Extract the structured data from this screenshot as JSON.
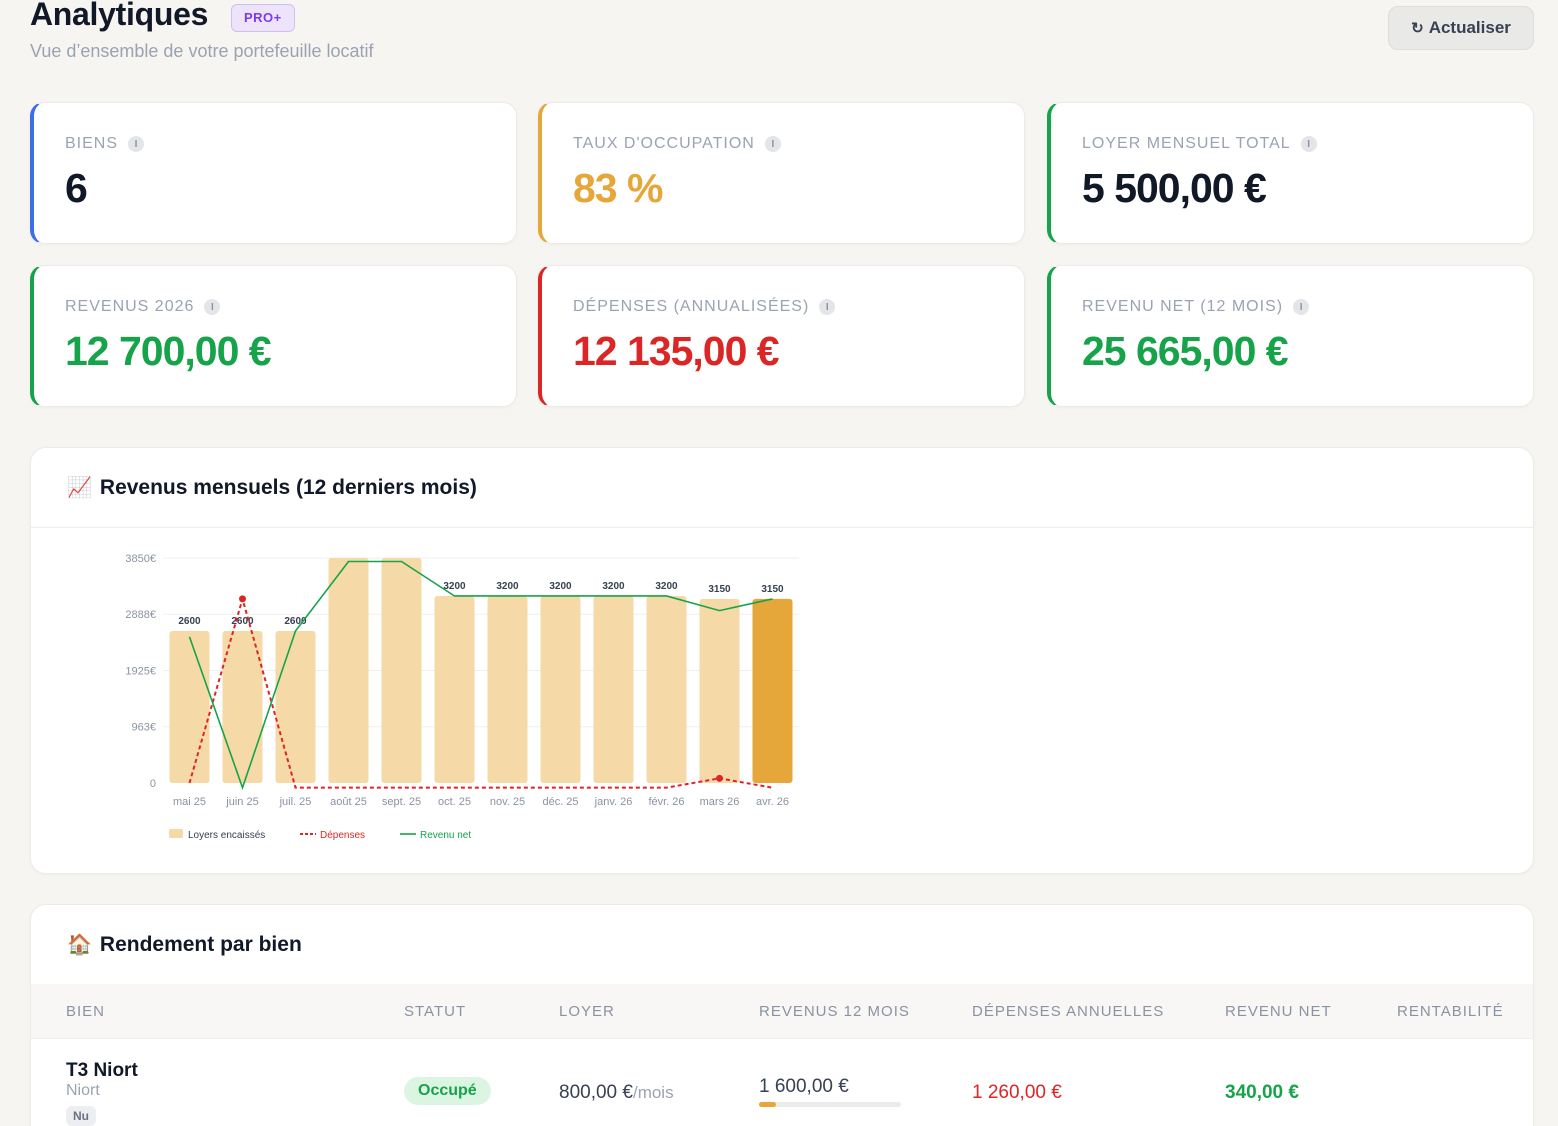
{
  "header": {
    "title": "Analytiques",
    "badge": "PRO+",
    "subtitle": "Vue d’ensemble de votre portefeuille locatif",
    "refresh_icon": "↻",
    "refresh_label": "Actualiser"
  },
  "colors": {
    "blue": "#3b6ee8",
    "orange": "#e6a73a",
    "green": "#16a34a",
    "red": "#dc2626",
    "dark": "#111827"
  },
  "kpis": [
    {
      "label": "Biens",
      "value": "6",
      "accent": "#3b6ee8",
      "value_color": "#111827"
    },
    {
      "label": "Taux d'occupation",
      "value": "83 %",
      "accent": "#e6a73a",
      "value_color": "#e6a73a"
    },
    {
      "label": "Loyer mensuel total",
      "value": "5 500,00 €",
      "accent": "#16a34a",
      "value_color": "#111827"
    },
    {
      "label": "Revenus 2026",
      "value": "12 700,00 €",
      "accent": "#16a34a",
      "value_color": "#16a34a"
    },
    {
      "label": "Dépenses (annualisées)",
      "value": "12 135,00 €",
      "accent": "#dc2626",
      "value_color": "#dc2626"
    },
    {
      "label": "Revenu net (12 mois)",
      "value": "25 665,00 €",
      "accent": "#16a34a",
      "value_color": "#16a34a"
    }
  ],
  "info_icon": "i",
  "chart_section": {
    "emoji": "📈",
    "title": "Revenus mensuels (12 derniers mois)"
  },
  "chart_data": {
    "type": "bar",
    "categories": [
      "mai 25",
      "juin 25",
      "juil. 25",
      "août 25",
      "sept. 25",
      "oct. 25",
      "nov. 25",
      "déc. 25",
      "janv. 26",
      "févr. 26",
      "mars 26",
      "avr. 26"
    ],
    "y_ticks": [
      0,
      963,
      1925,
      2888,
      3850
    ],
    "y_tick_labels": [
      "0",
      "963€",
      "1925€",
      "2888€",
      "3850€"
    ],
    "ylim": [
      0,
      3850
    ],
    "grid": true,
    "legend_position": "bottom-left",
    "series": [
      {
        "name": "Loyers encaissés",
        "kind": "bar",
        "color": "#f5d9a6",
        "highlight_color": "#e6a73a",
        "highlight_index": 11,
        "values": [
          2600,
          2600,
          2600,
          3850,
          3850,
          3200,
          3200,
          3200,
          3200,
          3200,
          3150,
          3150
        ],
        "labels": [
          "2600",
          "2600",
          "2600",
          "",
          "",
          "3200",
          "3200",
          "3200",
          "3200",
          "3200",
          "3150",
          "3150"
        ]
      },
      {
        "name": "Dépenses",
        "kind": "dashed-line",
        "color": "#dc2626",
        "values": [
          0,
          3150,
          -80,
          -80,
          -80,
          -80,
          -80,
          -80,
          -80,
          -80,
          80,
          -80
        ]
      },
      {
        "name": "Revenu net",
        "kind": "line",
        "color": "#16a34a",
        "values": [
          2500,
          -80,
          2600,
          3790,
          3790,
          3200,
          3200,
          3200,
          3200,
          3200,
          2950,
          3150
        ]
      }
    ]
  },
  "table_section": {
    "emoji": "🏠",
    "title": "Rendement par bien",
    "columns": [
      "Bien",
      "Statut",
      "Loyer",
      "Revenus 12 mois",
      "Dépenses annuelles",
      "Revenu net",
      "Rentabilité"
    ],
    "rows": [
      {
        "name": "T3 Niort",
        "city": "Niort",
        "type": "Nu",
        "status": "Occupé",
        "rent": "800,00 €",
        "rent_unit": "/mois",
        "revenue": "1 600,00 €",
        "revenue_progress": 0.12,
        "expenses": "1 260,00 €",
        "net": "340,00 €",
        "yield": ""
      }
    ]
  }
}
